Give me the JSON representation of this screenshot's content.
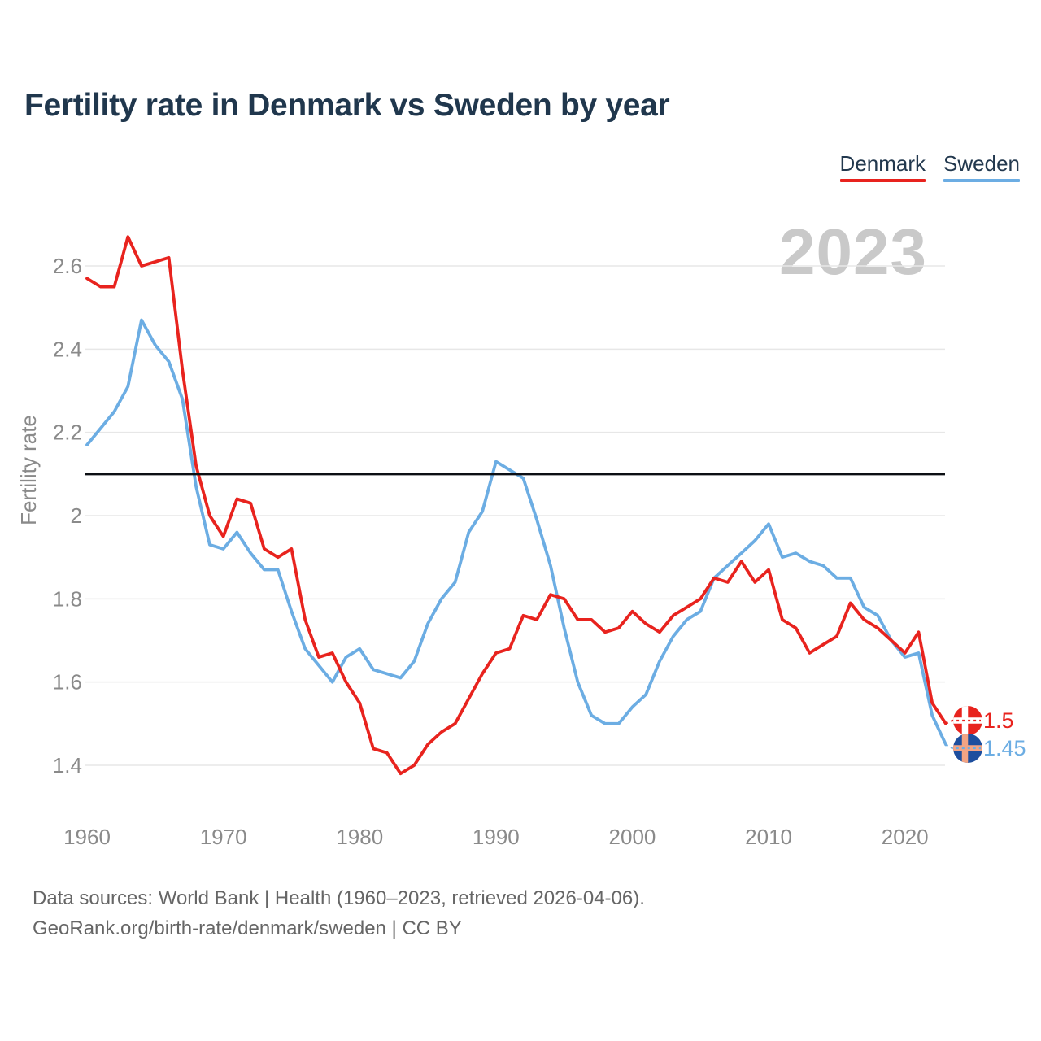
{
  "title": "Fertility rate in Denmark vs Sweden by year",
  "watermark": "2023",
  "footer": {
    "line1": "Data sources: World Bank | Health (1960–2023, retrieved 2026-04-06).",
    "line2": "GeoRank.org/birth-rate/denmark/sweden | CC BY"
  },
  "colors": {
    "title_text": "#20374d",
    "axis_text": "#8a8a8a",
    "gridline": "#e7e7e7",
    "reference_line": "#0c0f14",
    "watermark": "#c9c9c9",
    "footer_text": "#666666"
  },
  "icons": {
    "denmark_flag": {
      "name": "denmark-flag-icon",
      "bg": "#e8231e",
      "cross": "#ffffff"
    },
    "sweden_flag": {
      "name": "sweden-flag-icon",
      "bg": "#1d4e9e",
      "cross": "#f2a484"
    }
  },
  "chart_data": {
    "type": "line",
    "title": "Fertility rate in Denmark vs Sweden by year",
    "xlabel": "",
    "ylabel": "Fertility rate",
    "legend_position": "top-right",
    "grid": "horizontal",
    "ylim": [
      1.32,
      2.72
    ],
    "y_ticks": [
      2.6,
      2.4,
      2.2,
      2,
      1.8,
      1.6,
      1.4
    ],
    "x_ticks": [
      1960,
      1970,
      1980,
      1990,
      2000,
      2010,
      2020
    ],
    "reference_line": {
      "value": 2.1,
      "color": "#0c0f14"
    },
    "x": [
      1960,
      1961,
      1962,
      1963,
      1964,
      1965,
      1966,
      1967,
      1968,
      1969,
      1970,
      1971,
      1972,
      1973,
      1974,
      1975,
      1976,
      1977,
      1978,
      1979,
      1980,
      1981,
      1982,
      1983,
      1984,
      1985,
      1986,
      1987,
      1988,
      1989,
      1990,
      1991,
      1992,
      1993,
      1994,
      1995,
      1996,
      1997,
      1998,
      1999,
      2000,
      2001,
      2002,
      2003,
      2004,
      2005,
      2006,
      2007,
      2008,
      2009,
      2010,
      2011,
      2012,
      2013,
      2014,
      2015,
      2016,
      2017,
      2018,
      2019,
      2020,
      2021,
      2022,
      2023
    ],
    "series": [
      {
        "name": "Denmark",
        "color": "#e8231e",
        "end_label": "1.5",
        "end_value": 1.5,
        "values": [
          2.57,
          2.55,
          2.55,
          2.67,
          2.6,
          2.61,
          2.62,
          2.35,
          2.12,
          2,
          1.95,
          2.04,
          2.03,
          1.92,
          1.9,
          1.92,
          1.75,
          1.66,
          1.67,
          1.6,
          1.55,
          1.44,
          1.43,
          1.38,
          1.4,
          1.45,
          1.48,
          1.5,
          1.56,
          1.62,
          1.67,
          1.68,
          1.76,
          1.75,
          1.81,
          1.8,
          1.75,
          1.75,
          1.72,
          1.73,
          1.77,
          1.74,
          1.72,
          1.76,
          1.78,
          1.8,
          1.85,
          1.84,
          1.89,
          1.84,
          1.87,
          1.75,
          1.73,
          1.67,
          1.69,
          1.71,
          1.79,
          1.75,
          1.73,
          1.7,
          1.67,
          1.72,
          1.55,
          1.5
        ]
      },
      {
        "name": "Sweden",
        "color": "#6cade3",
        "end_label": "1.45",
        "end_value": 1.45,
        "values": [
          2.17,
          2.21,
          2.25,
          2.31,
          2.47,
          2.41,
          2.37,
          2.28,
          2.07,
          1.93,
          1.92,
          1.96,
          1.91,
          1.87,
          1.87,
          1.77,
          1.68,
          1.64,
          1.6,
          1.66,
          1.68,
          1.63,
          1.62,
          1.61,
          1.65,
          1.74,
          1.8,
          1.84,
          1.96,
          2.01,
          2.13,
          2.11,
          2.09,
          1.99,
          1.88,
          1.73,
          1.6,
          1.52,
          1.5,
          1.5,
          1.54,
          1.57,
          1.65,
          1.71,
          1.75,
          1.77,
          1.85,
          1.88,
          1.91,
          1.94,
          1.98,
          1.9,
          1.91,
          1.89,
          1.88,
          1.85,
          1.85,
          1.78,
          1.76,
          1.7,
          1.66,
          1.67,
          1.52,
          1.45
        ]
      }
    ]
  }
}
